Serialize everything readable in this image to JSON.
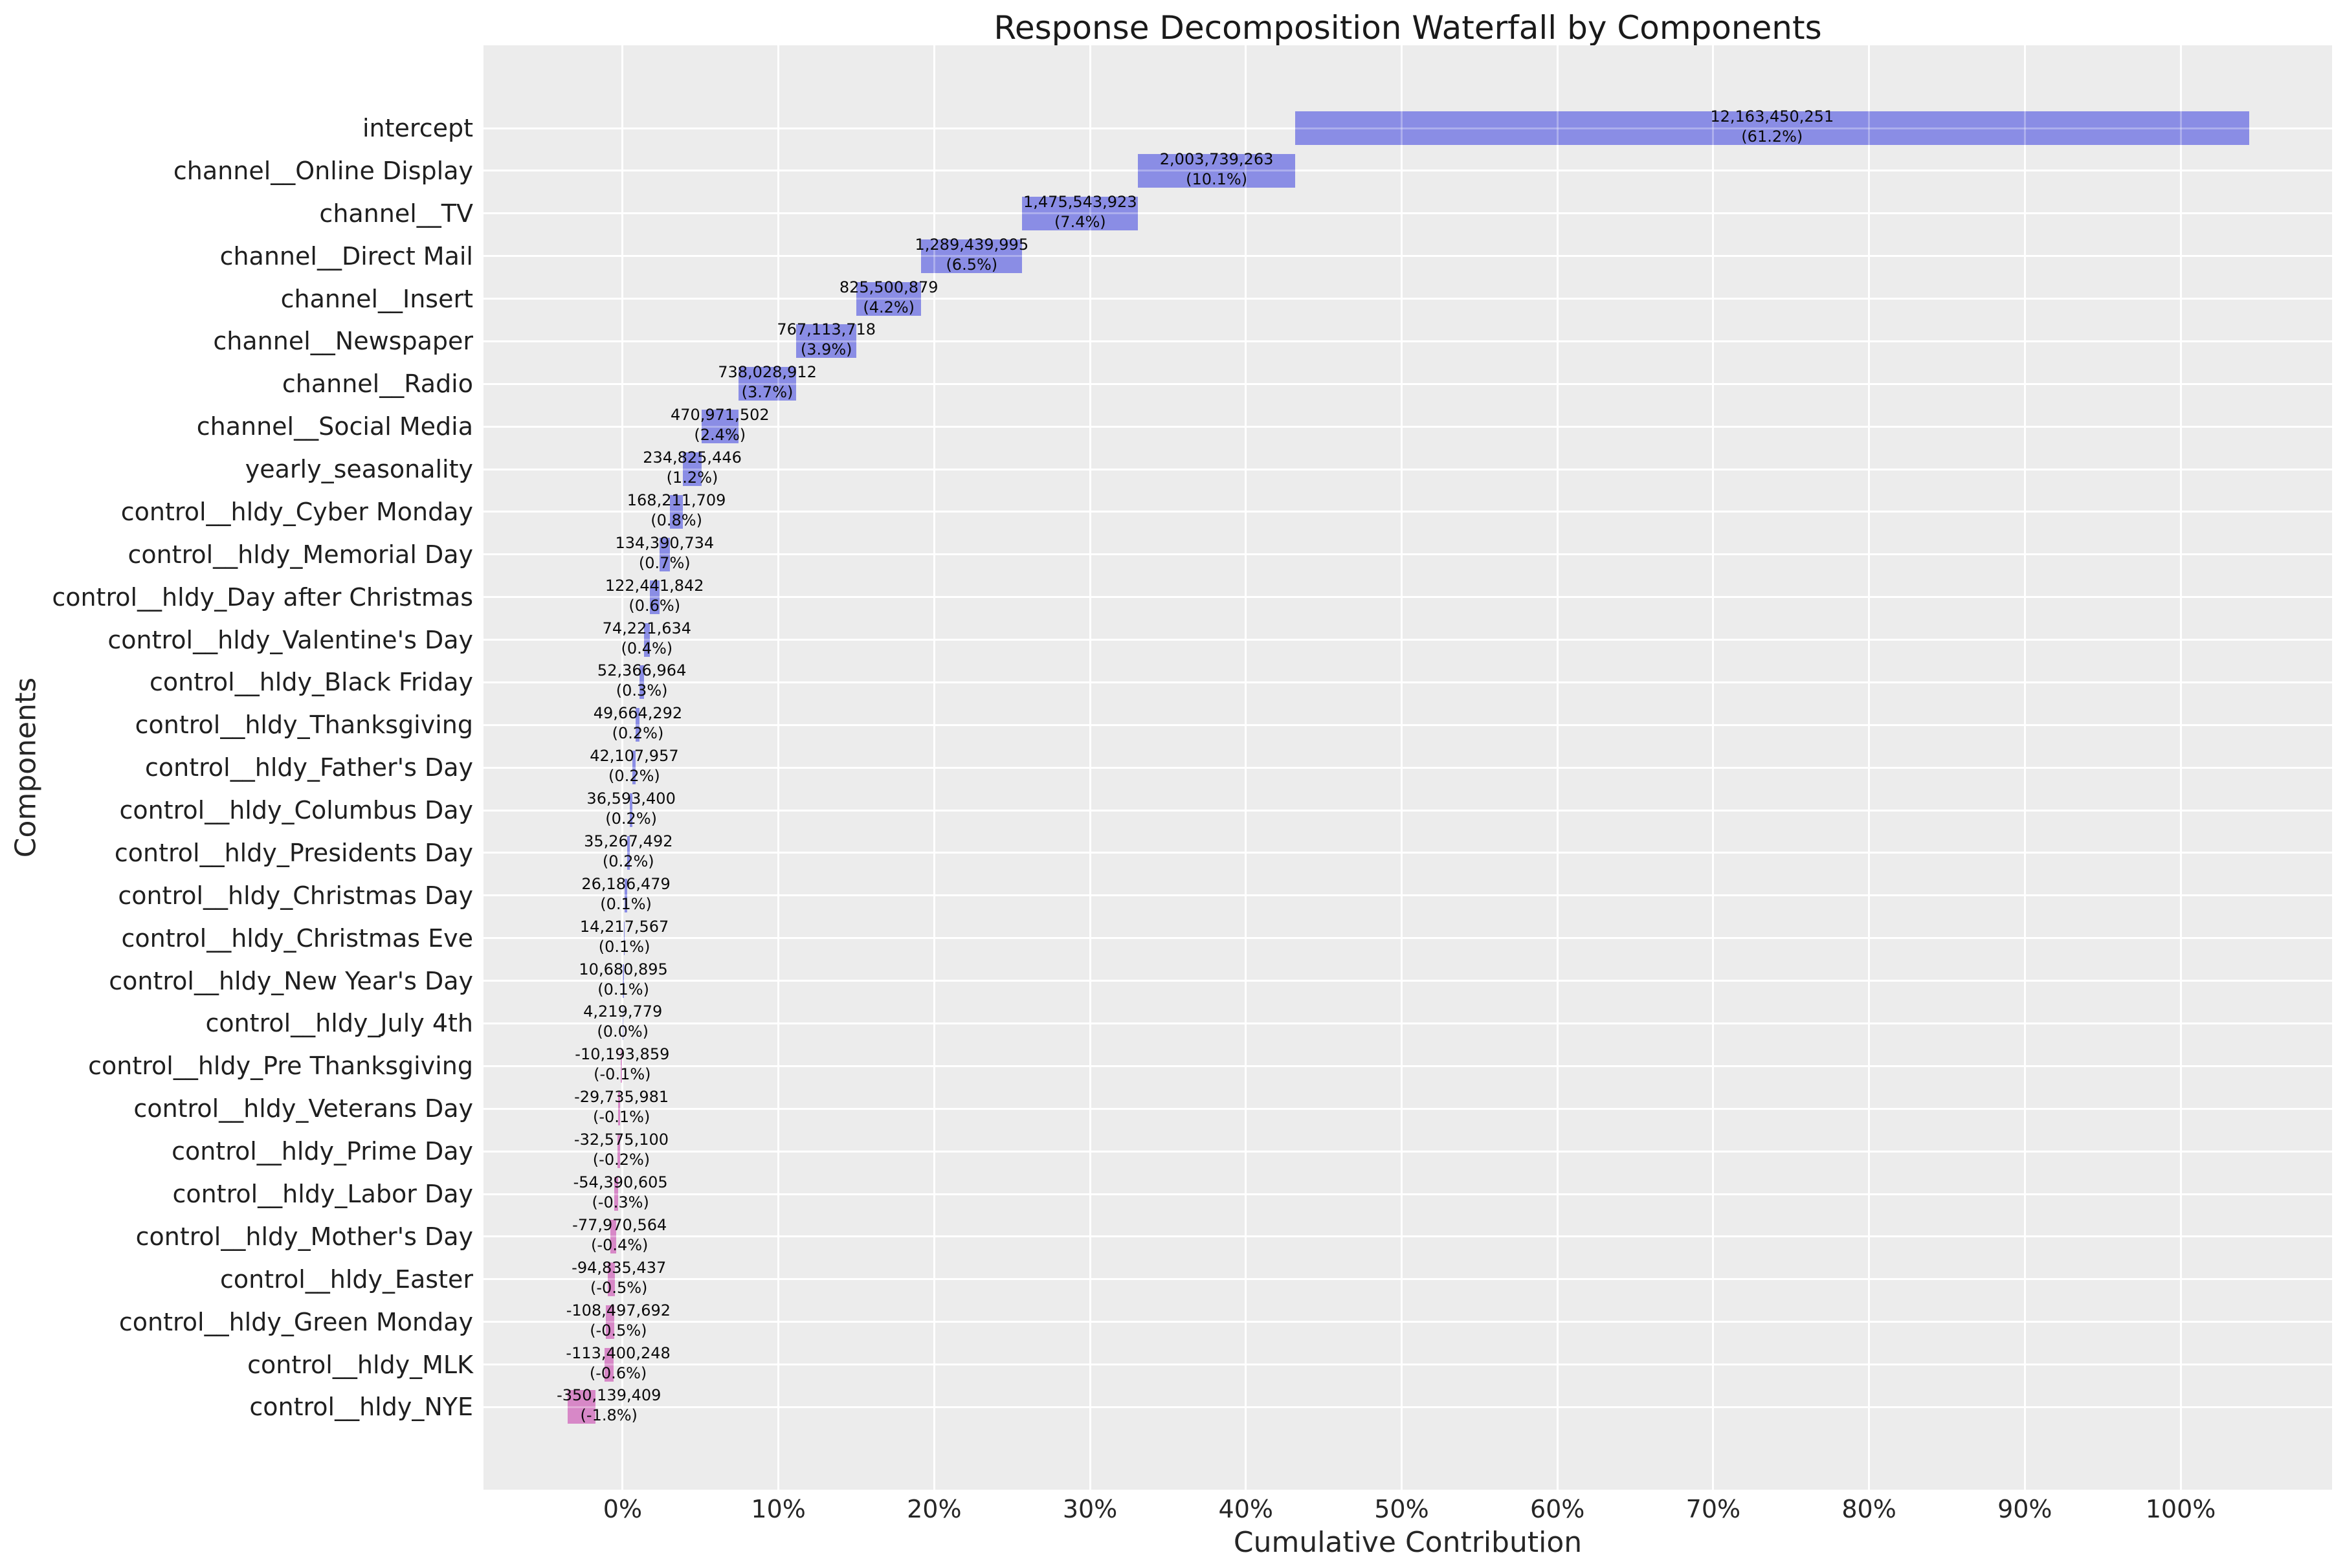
{
  "chart_data": {
    "type": "bar",
    "variant": "horizontal-waterfall",
    "title": "Response Decomposition Waterfall by Components",
    "xlabel": "Cumulative Contribution",
    "ylabel": "Components",
    "grid": "on",
    "legend": "none",
    "xlim": [
      -8.93,
      109.72
    ],
    "x_tick_values": [
      0,
      10,
      20,
      30,
      40,
      50,
      60,
      70,
      80,
      90,
      100
    ],
    "x_tick_labels": [
      "0%",
      "10%",
      "20%",
      "30%",
      "40%",
      "50%",
      "60%",
      "70%",
      "80%",
      "90%",
      "100%"
    ],
    "colors": {
      "positive_bar": "#8A8DE5",
      "negative_bar": "#D788C7",
      "plot_background": "#ECECEC",
      "gridline": "#FFFFFF",
      "text": "#262626"
    },
    "categories": [
      "intercept",
      "channel__Online Display",
      "channel__TV",
      "channel__Direct Mail",
      "channel__Insert",
      "channel__Newspaper",
      "channel__Radio",
      "channel__Social Media",
      "yearly_seasonality",
      "control__hldy_Cyber Monday",
      "control__hldy_Memorial Day",
      "control__hldy_Day after Christmas",
      "control__hldy_Valentine's Day",
      "control__hldy_Black Friday",
      "control__hldy_Thanksgiving",
      "control__hldy_Father's Day",
      "control__hldy_Columbus Day",
      "control__hldy_Presidents Day",
      "control__hldy_Christmas Day",
      "control__hldy_Christmas Eve",
      "control__hldy_New Year's Day",
      "control__hldy_July 4th",
      "control__hldy_Pre Thanksgiving",
      "control__hldy_Veterans Day",
      "control__hldy_Prime Day",
      "control__hldy_Labor Day",
      "control__hldy_Mother's Day",
      "control__hldy_Easter",
      "control__hldy_Green Monday",
      "control__hldy_MLK",
      "control__hldy_NYE"
    ],
    "values": [
      12163450251,
      2003739263,
      1475543923,
      1289439995,
      825500879,
      767113718,
      738028912,
      470971502,
      234825446,
      168211709,
      134390734,
      122441842,
      74221634,
      52366964,
      49664292,
      42107957,
      36593400,
      35267492,
      26186479,
      14217567,
      10680895,
      4219779,
      -10193859,
      -29735981,
      -32575100,
      -54390605,
      -77970564,
      -94835437,
      -108497692,
      -113400248,
      -350139409
    ],
    "value_labels": [
      "12,163,450,251",
      "2,003,739,263",
      "1,475,543,923",
      "1,289,439,995",
      "825,500,879",
      "767,113,718",
      "738,028,912",
      "470,971,502",
      "234,825,446",
      "168,211,709",
      "134,390,734",
      "122,441,842",
      "74,221,634",
      "52,366,964",
      "49,664,292",
      "42,107,957",
      "36,593,400",
      "35,267,492",
      "26,186,479",
      "14,217,567",
      "10,680,895",
      "4,219,779",
      "-10,193,859",
      "-29,735,981",
      "-32,575,100",
      "-54,390,605",
      "-77,970,564",
      "-94,835,437",
      "-108,497,692",
      "-113,400,248",
      "-350,139,409"
    ],
    "pct_labels": [
      "(61.2%)",
      "(10.1%)",
      "(7.4%)",
      "(6.5%)",
      "(4.2%)",
      "(3.9%)",
      "(3.7%)",
      "(2.4%)",
      "(1.2%)",
      "(0.8%)",
      "(0.7%)",
      "(0.6%)",
      "(0.4%)",
      "(0.3%)",
      "(0.2%)",
      "(0.2%)",
      "(0.2%)",
      "(0.2%)",
      "(0.1%)",
      "(0.1%)",
      "(0.1%)",
      "(0.0%)",
      "(-0.1%)",
      "(-0.1%)",
      "(-0.2%)",
      "(-0.3%)",
      "(-0.4%)",
      "(-0.5%)",
      "(-0.5%)",
      "(-0.6%)",
      "(-1.8%)"
    ]
  }
}
